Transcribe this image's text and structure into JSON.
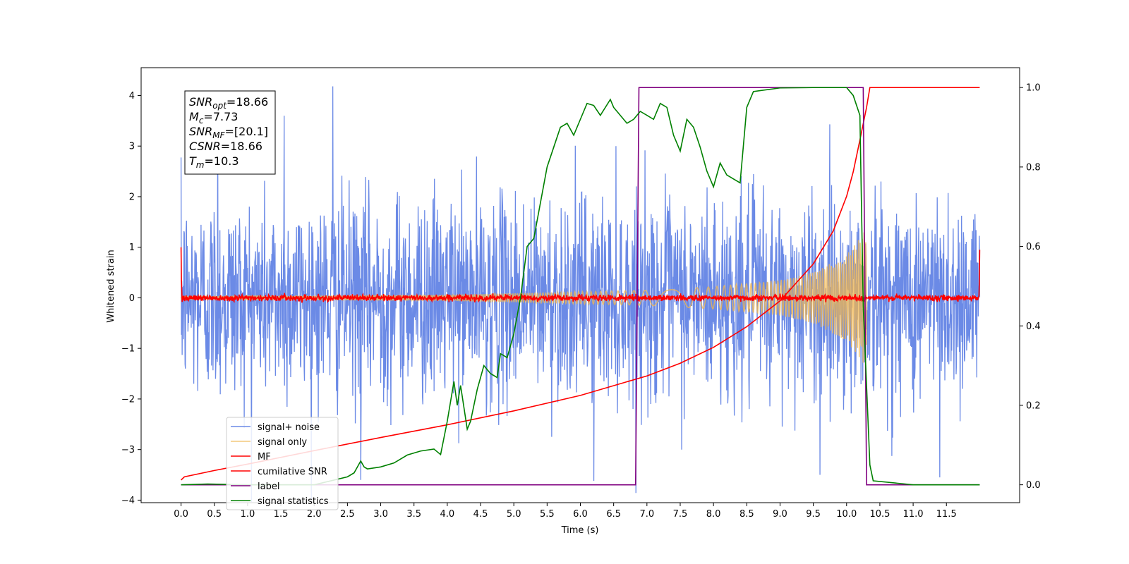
{
  "chart_data": {
    "type": "line",
    "title": "",
    "xlabel": "Time (s)",
    "ylabel_left": "Whitened strain",
    "ylabel_right": "",
    "xlim": [
      -0.6,
      12.6
    ],
    "ylim_left": [
      -4.05,
      4.55
    ],
    "ylim_right": [
      -0.045,
      1.05
    ],
    "x_ticks": [
      0.0,
      0.5,
      1.0,
      1.5,
      2.0,
      2.5,
      3.0,
      3.5,
      4.0,
      4.5,
      5.0,
      5.5,
      6.0,
      6.5,
      7.0,
      7.5,
      8.0,
      8.5,
      9.0,
      9.5,
      10.0,
      10.5,
      11.0,
      11.5
    ],
    "x_tick_labels": [
      "0.0",
      "0.5",
      "1.0",
      "1.5",
      "2.0",
      "2.5",
      "3.0",
      "3.5",
      "4.0",
      "4.5",
      "5.0",
      "5.5",
      "6.0",
      "6.5",
      "7.0",
      "7.5",
      "8.0",
      "8.5",
      "9.0",
      "9.5",
      "10.0",
      "10.5",
      "11.0",
      "11.5"
    ],
    "y_ticks_left": [
      -4,
      -3,
      -2,
      -1,
      0,
      1,
      2,
      3,
      4
    ],
    "y_tick_labels_left": [
      "−4",
      "−3",
      "−2",
      "−1",
      "0",
      "1",
      "2",
      "3",
      "4"
    ],
    "y_ticks_right": [
      0.0,
      0.2,
      0.4,
      0.6,
      0.8,
      1.0
    ],
    "y_tick_labels_right": [
      "0.0",
      "0.2",
      "0.4",
      "0.6",
      "0.8",
      "1.0"
    ],
    "grid": false,
    "legend_placement": "lower-left",
    "stats_box": [
      {
        "sym": "SNR",
        "sub": "opt",
        "val": "=18.66"
      },
      {
        "sym": "M",
        "sub": "c",
        "val": "=7.73"
      },
      {
        "sym": "SNR",
        "sub": "MF",
        "val": "=[20.1]"
      },
      {
        "sym": "CSNR",
        "sub": "",
        "val": "=18.66"
      },
      {
        "sym": "T",
        "sub": "m",
        "val": "=10.3"
      }
    ],
    "series": [
      {
        "name": "signal+ noise",
        "axis": "left",
        "color": "#6b8ae6",
        "kind": "noise",
        "t_start": 0.0,
        "t_end": 12.0,
        "sigma": 1.0,
        "points": 2200,
        "spikes": [
          [
            2.28,
            4.18
          ],
          [
            0.55,
            3.9
          ],
          [
            1.55,
            3.6
          ],
          [
            6.2,
            -3.62
          ],
          [
            2.7,
            -3.6
          ],
          [
            9.6,
            -3.5
          ],
          [
            11.4,
            -3.55
          ]
        ]
      },
      {
        "name": "signal only",
        "axis": "left",
        "color": "#f0b64f",
        "kind": "chirp",
        "t_start": 0.0,
        "t_end": 10.3,
        "envelope": [
          [
            0.0,
            0.04
          ],
          [
            4.0,
            0.06
          ],
          [
            6.0,
            0.12
          ],
          [
            7.0,
            0.15
          ],
          [
            8.0,
            0.22
          ],
          [
            9.0,
            0.35
          ],
          [
            9.5,
            0.5
          ],
          [
            10.0,
            0.85
          ],
          [
            10.2,
            1.2
          ],
          [
            10.25,
            1.3
          ]
        ]
      },
      {
        "name": "MF",
        "axis": "left",
        "color": "#ff0000",
        "kind": "noise",
        "t_start": 0.0,
        "t_end": 12.0,
        "sigma": 0.03,
        "points": 2200,
        "edges": [
          [
            0.0,
            1.0
          ],
          [
            12.0,
            0.95
          ]
        ]
      },
      {
        "name": "cumilative SNR",
        "axis": "right",
        "color": "#ff0000",
        "kind": "line",
        "x": [
          0.0,
          0.05,
          0.5,
          1.0,
          2.0,
          3.0,
          4.0,
          5.0,
          6.0,
          7.0,
          7.5,
          8.0,
          8.5,
          9.0,
          9.5,
          9.8,
          10.0,
          10.1,
          10.2,
          10.3,
          10.35,
          12.0
        ],
        "y": [
          0.012,
          0.02,
          0.036,
          0.052,
          0.086,
          0.119,
          0.151,
          0.186,
          0.225,
          0.274,
          0.306,
          0.346,
          0.398,
          0.463,
          0.556,
          0.639,
          0.726,
          0.788,
          0.868,
          0.95,
          1.0,
          1.0
        ]
      },
      {
        "name": "label",
        "axis": "right",
        "color": "#800080",
        "kind": "line",
        "x": [
          0.0,
          6.83,
          6.88,
          10.25,
          10.3,
          12.0
        ],
        "y": [
          0.0,
          0.0,
          1.0,
          1.0,
          0.0,
          0.0
        ]
      },
      {
        "name": "signal statistics",
        "axis": "right",
        "color": "#008000",
        "kind": "line",
        "x": [
          0.0,
          0.4,
          1.0,
          2.0,
          2.5,
          2.6,
          2.7,
          2.75,
          2.8,
          3.0,
          3.2,
          3.4,
          3.6,
          3.8,
          3.9,
          4.0,
          4.1,
          4.15,
          4.2,
          4.3,
          4.35,
          4.45,
          4.55,
          4.65,
          4.75,
          4.8,
          4.9,
          5.0,
          5.1,
          5.2,
          5.3,
          5.4,
          5.5,
          5.6,
          5.7,
          5.8,
          5.9,
          6.0,
          6.1,
          6.2,
          6.3,
          6.45,
          6.5,
          6.6,
          6.7,
          6.8,
          6.9,
          7.0,
          7.1,
          7.2,
          7.3,
          7.4,
          7.5,
          7.6,
          7.7,
          7.8,
          7.9,
          8.0,
          8.1,
          8.2,
          8.3,
          8.4,
          8.5,
          8.6,
          9.0,
          9.5,
          10.0,
          10.1,
          10.2,
          10.25,
          10.35,
          10.4,
          11.0,
          12.0
        ],
        "y": [
          0.0,
          0.002,
          0.0,
          0.0,
          0.02,
          0.03,
          0.06,
          0.045,
          0.04,
          0.045,
          0.055,
          0.075,
          0.085,
          0.09,
          0.076,
          0.16,
          0.26,
          0.2,
          0.25,
          0.14,
          0.16,
          0.24,
          0.3,
          0.28,
          0.27,
          0.33,
          0.32,
          0.38,
          0.47,
          0.6,
          0.62,
          0.71,
          0.8,
          0.85,
          0.9,
          0.91,
          0.88,
          0.92,
          0.96,
          0.955,
          0.93,
          0.97,
          0.95,
          0.93,
          0.91,
          0.92,
          0.94,
          0.93,
          0.92,
          0.96,
          0.95,
          0.88,
          0.84,
          0.92,
          0.9,
          0.85,
          0.79,
          0.75,
          0.81,
          0.78,
          0.77,
          0.76,
          0.95,
          0.99,
          0.999,
          1.0,
          1.0,
          0.98,
          0.93,
          0.45,
          0.05,
          0.01,
          0.0,
          0.0
        ]
      }
    ]
  }
}
